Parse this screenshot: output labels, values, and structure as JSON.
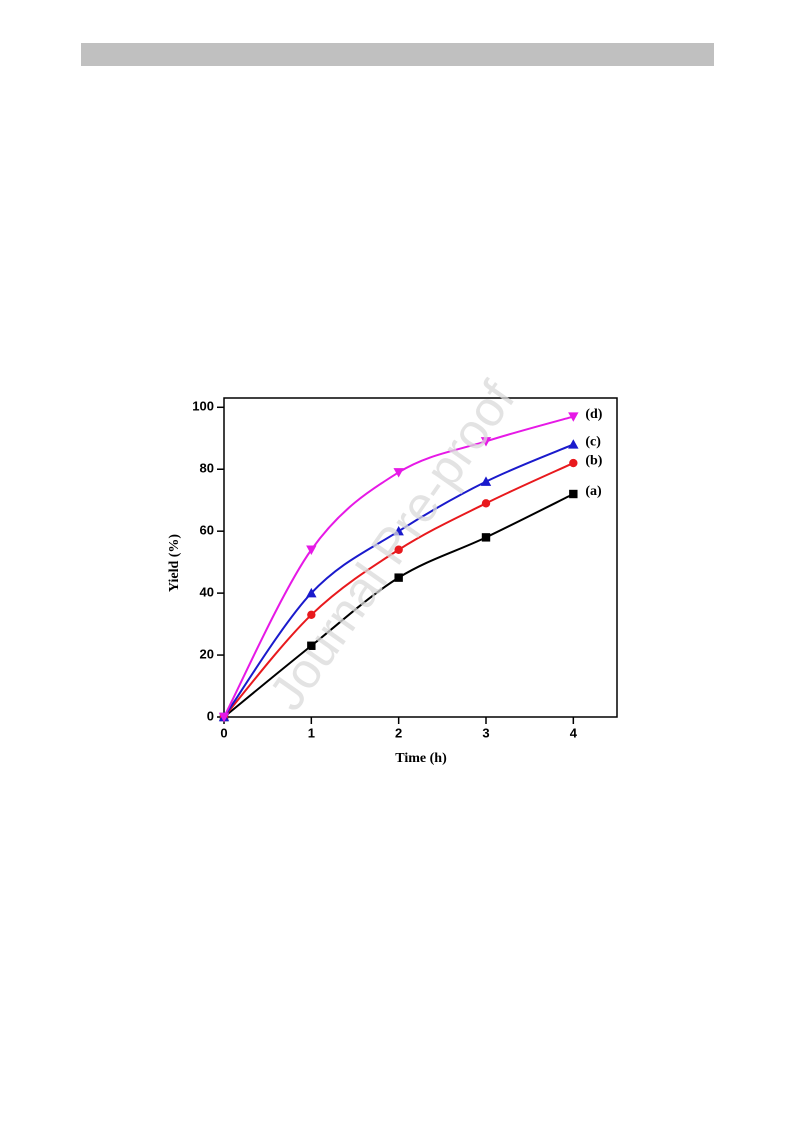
{
  "chart_data": {
    "type": "line",
    "watermark": "Journal Pre-proof",
    "x_label": "Time (h)",
    "y_label": "Yield (%)",
    "x": [
      0,
      1,
      2,
      3,
      4
    ],
    "xlim": [
      0,
      4.5
    ],
    "xticks": [
      0,
      1,
      2,
      3,
      4
    ],
    "ylim": [
      0,
      103
    ],
    "yticks": [
      0,
      20,
      40,
      60,
      80,
      100
    ],
    "series": [
      {
        "name": "(a)",
        "color": "#000000",
        "marker": "square",
        "values": [
          0,
          23,
          45,
          58,
          72
        ]
      },
      {
        "name": "(b)",
        "color": "#e8191d",
        "marker": "circle",
        "values": [
          0,
          33,
          54,
          69,
          82
        ]
      },
      {
        "name": "(c)",
        "color": "#1a1acc",
        "marker": "triangle-up",
        "values": [
          0,
          40,
          60,
          76,
          88
        ]
      },
      {
        "name": "(d)",
        "color": "#e619e6",
        "marker": "triangle-down",
        "values": [
          0,
          54,
          79,
          89,
          97
        ]
      }
    ]
  }
}
